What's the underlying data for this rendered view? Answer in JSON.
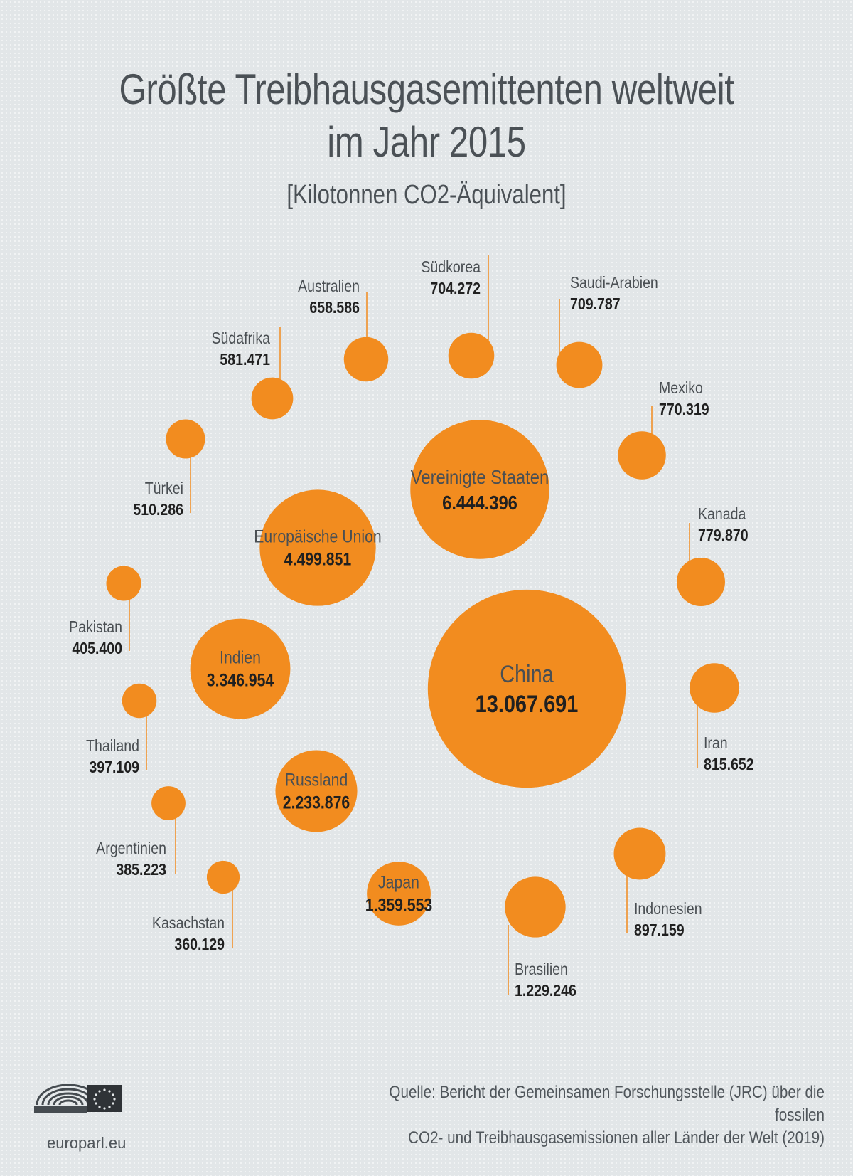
{
  "title_line1": "Größte Treibhausgasemittenten weltweit",
  "title_line2": "im Jahr 2015",
  "subtitle": "[Kilotonnen CO2-Äquivalent]",
  "source_line1": "Quelle: Bericht der Gemeinsamen Forschungsstelle (JRC) über die fossilen",
  "source_line2": "CO2- und Treibhausgasemissionen aller Länder der Welt (2019)",
  "logo_text": "europarl.eu",
  "colors": {
    "bubble": "#f28c1f",
    "leader": "#f28c1f",
    "label": "#4a4f53",
    "value": "#202020"
  },
  "chart_data": {
    "type": "bubble",
    "unit": "Kilotonnen CO2-Äquivalent",
    "items": [
      {
        "name": "China",
        "value": 13067691,
        "label": "13.067.691"
      },
      {
        "name": "Vereinigte Staaten",
        "value": 6444396,
        "label": "6.444.396"
      },
      {
        "name": "Europäische Union",
        "value": 4499851,
        "label": "4.499.851"
      },
      {
        "name": "Indien",
        "value": 3346954,
        "label": "3.346.954"
      },
      {
        "name": "Russland",
        "value": 2233876,
        "label": "2.233.876"
      },
      {
        "name": "Japan",
        "value": 1359553,
        "label": "1.359.553"
      },
      {
        "name": "Brasilien",
        "value": 1229246,
        "label": "1.229.246"
      },
      {
        "name": "Indonesien",
        "value": 897159,
        "label": "897.159"
      },
      {
        "name": "Iran",
        "value": 815652,
        "label": "815.652"
      },
      {
        "name": "Kanada",
        "value": 779870,
        "label": "779.870"
      },
      {
        "name": "Mexiko",
        "value": 770319,
        "label": "770.319"
      },
      {
        "name": "Saudi-Arabien",
        "value": 709787,
        "label": "709.787"
      },
      {
        "name": "Südkorea",
        "value": 704272,
        "label": "704.272"
      },
      {
        "name": "Australien",
        "value": 658586,
        "label": "658.586"
      },
      {
        "name": "Südafrika",
        "value": 581471,
        "label": "581.471"
      },
      {
        "name": "Türkei",
        "value": 510286,
        "label": "510.286"
      },
      {
        "name": "Pakistan",
        "value": 405400,
        "label": "405.400"
      },
      {
        "name": "Thailand",
        "value": 397109,
        "label": "397.109"
      },
      {
        "name": "Argentinien",
        "value": 385223,
        "label": "385.223"
      },
      {
        "name": "Kasachstan",
        "value": 360129,
        "label": "360.129"
      }
    ]
  }
}
